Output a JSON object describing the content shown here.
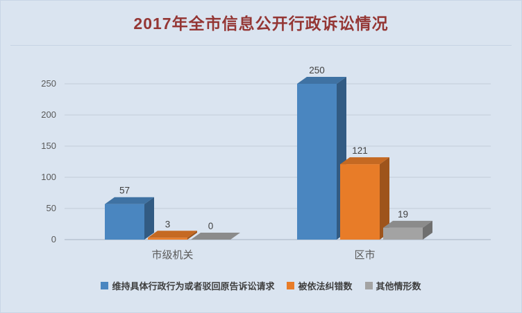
{
  "chart_data": {
    "type": "bar",
    "style": "3d",
    "title": "2017年全市信息公开行政诉讼情况",
    "categories": [
      "市级机关",
      "区市"
    ],
    "series": [
      {
        "name": "维持具体行政行为或者驳回原告诉讼请求",
        "color": "#4a86c0",
        "values": [
          57,
          250
        ]
      },
      {
        "name": "被依法纠错数",
        "color": "#e87c28",
        "values": [
          3,
          121
        ]
      },
      {
        "name": "其他情形数",
        "color": "#a3a3a3",
        "values": [
          0,
          19
        ]
      }
    ],
    "ylim": [
      0,
      250
    ],
    "yticks": [
      0,
      50,
      100,
      150,
      200,
      250
    ],
    "grid": true,
    "data_labels": true,
    "legend_position": "bottom",
    "xlabel": "",
    "ylabel": ""
  },
  "colors": {
    "background": "#dae4f0",
    "title": "#943634",
    "gridline": "#c3ccd8",
    "axis_line": "#a7b2c2",
    "axis_text": "#595959",
    "data_label_text": "#404040",
    "legend_text": "#3f3f3f"
  }
}
